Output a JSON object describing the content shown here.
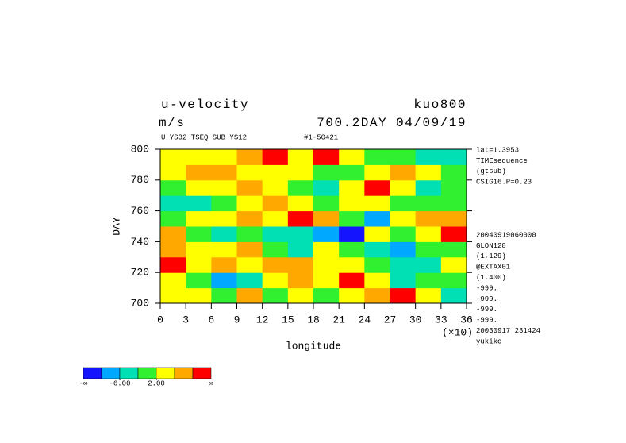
{
  "chart_data": {
    "type": "contour",
    "title": "u-velocity",
    "title_right": "kuo800",
    "units": "m/s",
    "subtitle_right": "700.2DAY 04/09/19",
    "header_left": "U YS32 TSEQ SUB YS12",
    "header_right": "#1-50421",
    "xlabel": "longitude",
    "ylabel": "DAY",
    "x_multiplier": "(×10)",
    "xlim": [
      0,
      36
    ],
    "ylim": [
      700,
      800
    ],
    "xticks": [
      0,
      3,
      6,
      9,
      12,
      15,
      18,
      21,
      24,
      27,
      30,
      33,
      36
    ],
    "yticks": [
      700,
      720,
      740,
      760,
      780,
      800
    ],
    "x": [
      1.5,
      4.5,
      7.5,
      10.5,
      13.5,
      16.5,
      19.5,
      22.5,
      25.5,
      28.5,
      31.5,
      34.5
    ],
    "y": [
      705,
      715,
      725,
      735,
      745,
      755,
      765,
      775,
      785,
      795
    ],
    "z": [
      [
        5,
        3,
        -2,
        6,
        1,
        4,
        -1,
        2,
        9,
        11,
        5,
        -3
      ],
      [
        2,
        -1,
        -9,
        -4,
        3,
        8,
        4,
        11,
        3,
        -3,
        1,
        -2
      ],
      [
        11,
        4,
        7,
        3,
        9,
        6,
        2,
        5,
        -1,
        -5,
        -3,
        4
      ],
      [
        6,
        3,
        5,
        7,
        -2,
        -6,
        3,
        -2,
        -3,
        -9,
        0,
        1
      ],
      [
        8,
        -2,
        -4,
        1,
        -3,
        -5,
        -8,
        -11,
        2,
        1,
        4,
        12
      ],
      [
        1,
        4,
        3,
        8,
        5,
        11,
        6,
        1,
        -7,
        3,
        7,
        9
      ],
      [
        -5,
        -3,
        1,
        4,
        6,
        3,
        -1,
        2,
        3,
        -2,
        1,
        0
      ],
      [
        -1,
        2,
        5,
        7,
        3,
        1,
        -3,
        5,
        11,
        2,
        -3,
        -1
      ],
      [
        3,
        6,
        9,
        5,
        2,
        4,
        1,
        -2,
        4,
        8,
        3,
        -2
      ],
      [
        4,
        3,
        4,
        8,
        12,
        5,
        12,
        3,
        1,
        -1,
        -4,
        -3
      ]
    ],
    "levels": [
      -10,
      -6,
      -2,
      2,
      6,
      10
    ],
    "colors": [
      "#1414ff",
      "#00a8ff",
      "#00e0b4",
      "#30f030",
      "#ffff00",
      "#ffa800",
      "#ff0000"
    ],
    "colorbar_ticks": [
      {
        "value": -6,
        "label": "-6.00"
      },
      {
        "value": 2,
        "label": "2.00"
      }
    ],
    "colorbar_end_labels": [
      "-∞",
      "∞"
    ],
    "notes_top": [
      "lat=1.3953",
      "TIMEsequence",
      "(gtsub)",
      "CSIG16.P=0.23"
    ],
    "notes_bottom": [
      "20040919060000",
      "GLON128",
      "(1,129)",
      "@EXTAX01",
      "(1,400)",
      "-999.",
      "-999.",
      "-999.",
      "-999.",
      "20030917 231424",
      "yukiko"
    ]
  }
}
